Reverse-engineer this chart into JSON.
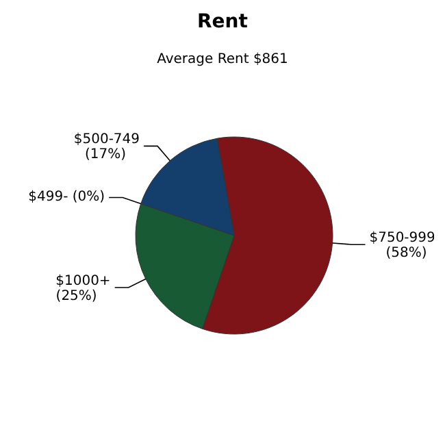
{
  "chart_data": {
    "type": "pie",
    "title": "Rent",
    "subtitle": "Average Rent  $861",
    "categories": [
      "$750-999",
      "$1000+",
      "$499-",
      "$500-749"
    ],
    "values": [
      58,
      25,
      0,
      17
    ],
    "colors": [
      "#7e1418",
      "#175a34",
      "#8a8a8a",
      "#143f6c"
    ],
    "value_labels": [
      "(58%)",
      "(25%)",
      "(0%)",
      "(17%)"
    ]
  }
}
